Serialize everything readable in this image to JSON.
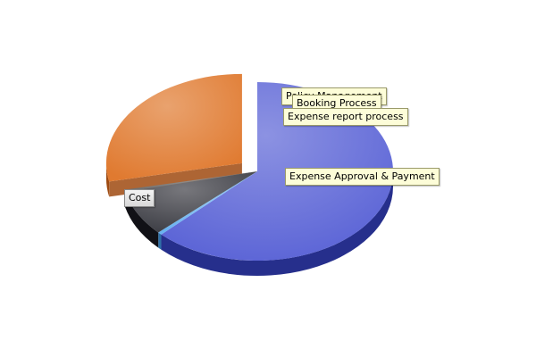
{
  "chart_data": {
    "type": "pie",
    "title": "",
    "slices": [
      {
        "label": "Cost",
        "value": 62.5,
        "color": "#5a63d6",
        "side_color": "#262f8c",
        "callout_style": "grey"
      },
      {
        "label": "Policy Management",
        "value": 0.5,
        "color": "#69b2f0",
        "side_color": "#2e6fa6",
        "callout_style": "tip"
      },
      {
        "label": "Booking Process",
        "value": 8.3,
        "color": "#3c3d44",
        "side_color": "#111116",
        "callout_style": "tip"
      },
      {
        "label": "Expense report process",
        "value": 0.4,
        "color": "#6a6a6a",
        "side_color": "#2a2a2a",
        "callout_style": "tip"
      },
      {
        "label": "Expense Approval & Payment",
        "value": 28.3,
        "color": "#e07a30",
        "side_color": "#9e4a10",
        "callout_style": "tip",
        "exploded": true
      }
    ],
    "legend": "none",
    "style": "3d-pie-with-callouts"
  }
}
